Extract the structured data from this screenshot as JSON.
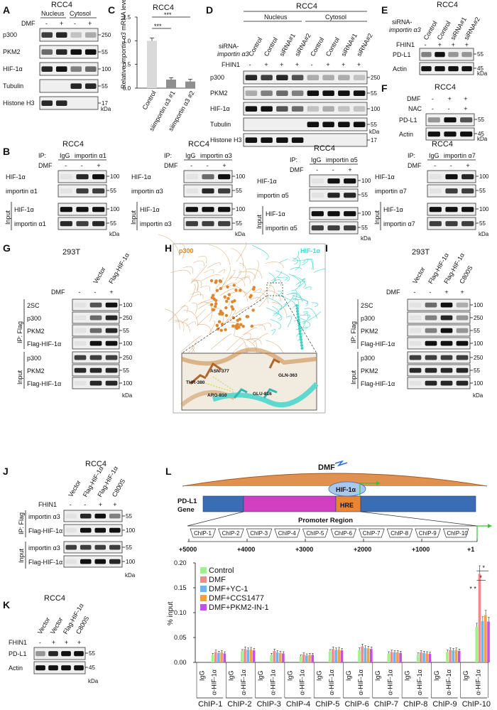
{
  "figure": {
    "panels": {
      "A": {
        "letter": "A",
        "cell": "RCC4",
        "cols": [
          "Nucleus",
          "Cytosol"
        ],
        "treat": "DMF",
        "signs": [
          "-",
          "+",
          "-",
          "+"
        ],
        "rows": [
          "p300",
          "PKM2",
          "HIF-1α",
          "Tubulin",
          "Histone H3"
        ],
        "mw": [
          "250",
          "55",
          "100",
          "55",
          "17"
        ],
        "kda": "kDa"
      },
      "B": {
        "letter": "B",
        "cell": "RCC4",
        "ip": "IP:",
        "igg": "IgG",
        "treat": "DMF",
        "input": "Input",
        "kda": "kDa",
        "subs": [
          {
            "imp": "importin α1",
            "hif": "HIF-1α",
            "mw1": "100",
            "mw2": "55"
          },
          {
            "imp": "importin α3",
            "hif": "HIF-1α",
            "mw1": "100",
            "mw2": "55"
          },
          {
            "imp": "importin α5",
            "hif": "HIF-1α",
            "mw1": "100",
            "mw2": "55"
          },
          {
            "imp": "importin α7",
            "hif": "HIF-1α",
            "mw1": "100",
            "mw2": "55"
          }
        ],
        "signs": [
          "-",
          "-",
          "+"
        ]
      },
      "C": {
        "letter": "C",
        "cell": "RCC4",
        "ylabel_a": "Relative ",
        "ylabel_b": "importin α3",
        "ylabel_c": " mRNA level",
        "cats": [
          "Control",
          "siimportin α3 #1",
          "siimportin α3 #2"
        ],
        "sig": "***",
        "yticks": [
          "0.0",
          "0.5",
          "1.0",
          "1.5"
        ]
      },
      "D": {
        "letter": "D",
        "cell": "RCC4",
        "cols": [
          "Nucleus",
          "Cytosol"
        ],
        "sirna_a": "siRNA-",
        "sirna_b": "importin α3",
        "lanes": [
          "Control",
          "Control",
          "siRNA#1",
          "siRNA#2",
          "Control",
          "Control",
          "siRNA#1",
          "siRNA#2"
        ],
        "fhin": "FHIN1",
        "signs": [
          "-",
          "+",
          "+",
          "+",
          "-",
          "+",
          "+",
          "+"
        ],
        "rows": [
          "p300",
          "PKM2",
          "HIF-1α",
          "Tubulin",
          "Histone H3"
        ],
        "mw": [
          "250",
          "55",
          "100",
          "55",
          "17"
        ],
        "kda": "kDa"
      },
      "E": {
        "letter": "E",
        "cell": "RCC4",
        "sirna_a": "siRNA-",
        "sirna_b": "importin α3",
        "lanes": [
          "Control",
          "Control",
          "siRNA#1",
          "siRNA#2"
        ],
        "fhin": "FHIN1",
        "signs": [
          "-",
          "+",
          "+",
          "+"
        ],
        "rows": [
          "PD-L1",
          "Actin"
        ],
        "mw": [
          "55",
          "45"
        ],
        "kda": "kDa"
      },
      "F": {
        "letter": "F",
        "cell": "RCC4",
        "t1": "DMF",
        "t2": "NAC",
        "s1": [
          "-",
          "+",
          "+"
        ],
        "s2": [
          "-",
          "-",
          "+"
        ],
        "rows": [
          "PD-L1",
          "Actin"
        ],
        "mw": [
          "55",
          "45"
        ],
        "kda": "kDa"
      },
      "G": {
        "letter": "G",
        "cell": "293T",
        "lanes": [
          "Vector",
          "Flag-HIF-1α"
        ],
        "treat": "DMF",
        "signs": [
          "-",
          "-",
          "+"
        ],
        "ip": "IP: Flag",
        "input": "Input",
        "rows_ip": [
          "2SC",
          "p300",
          "PKM2",
          "Flag-HIF-1α"
        ],
        "mw_ip": [
          "100",
          "250",
          "55",
          "100"
        ],
        "rows_in": [
          "p300",
          "PKM2",
          "Flag-HIF-1α"
        ],
        "mw_in": [
          "250",
          "55",
          "100"
        ],
        "kda": "kDa"
      },
      "H": {
        "letter": "H",
        "p300": "p300",
        "hif": "HIF-1α",
        "residues": [
          "ASN-377",
          "GLN-363",
          "THR-380",
          "ARG-810",
          "GLU-816"
        ]
      },
      "I": {
        "letter": "I",
        "cell": "293T",
        "lanes": [
          "Vector",
          "Flag-HIF-1α",
          "Flag-HIF-1α",
          "C800S"
        ],
        "treat": "DMF",
        "signs": [
          "-",
          "-",
          "+",
          "+"
        ],
        "ip": "IP: Flag",
        "input": "Input",
        "rows_ip": [
          "2SC",
          "p300",
          "PKM2",
          "Flag-HIF-1α"
        ],
        "mw_ip": [
          "100",
          "250",
          "55",
          "100"
        ],
        "rows_in": [
          "p300",
          "PKM2",
          "Flag-HIF-1α"
        ],
        "mw_in": [
          "250",
          "55",
          "100"
        ],
        "kda": "kDa"
      },
      "J": {
        "letter": "J",
        "cell": "RCC4",
        "lanes": [
          "Vector",
          "Flag-HIF-1α",
          "Flag-HIF-1α",
          "C800S"
        ],
        "treat": "FHIN1",
        "signs": [
          "-",
          "-",
          "+",
          "+"
        ],
        "ip": "IP: Flag",
        "input": "Input",
        "rows_ip": [
          "importin α3",
          "Flag-HIF-1α"
        ],
        "mw_ip": [
          "55",
          "100"
        ],
        "rows_in": [
          "importin α3",
          "Flag-HIF-1α"
        ],
        "mw_in": [
          "55",
          "100"
        ],
        "kda": "kDa"
      },
      "K": {
        "letter": "K",
        "cell": "RCC4",
        "lanes": [
          "Vector",
          "Vector",
          "Flag-HIF-1α",
          "C800S"
        ],
        "treat": "FHIN1",
        "signs": [
          "-",
          "+",
          "+",
          "+"
        ],
        "rows": [
          "PD-L1",
          "Actin"
        ],
        "mw": [
          "55",
          "45"
        ],
        "kda": "kDa"
      },
      "L": {
        "letter": "L",
        "dmf": "DMF",
        "gene_a": "PD-L1",
        "gene_b": "Gene",
        "hif": "HIF-1α",
        "hre": "HRE",
        "promoter": "Promoter Region",
        "chips": [
          "ChIP-1",
          "ChIP-2",
          "ChIP-3",
          "ChIP-4",
          "ChIP-5",
          "ChIP-6",
          "ChIP-7",
          "ChIP-8",
          "ChIP-9",
          "ChIP-10"
        ],
        "positions": [
          "+5000",
          "+4000",
          "+3000",
          "+2000",
          "+1000",
          "+1"
        ],
        "igg": "IgG",
        "ahif": "α-HIF-1α",
        "star": "*",
        "dstar": "* *"
      }
    }
  },
  "chart_data": [
    {
      "type": "bar",
      "title": "RCC4",
      "ylabel": "Relative importin α3 mRNA level",
      "categories": [
        "Control",
        "siimportin α3 #1",
        "siimportin α3 #2"
      ],
      "values": [
        1.0,
        0.18,
        0.14
      ],
      "errors": [
        0.06,
        0.04,
        0.05
      ],
      "ylim": [
        0,
        1.5
      ],
      "yticks": [
        0,
        0.5,
        1.0,
        1.5
      ],
      "annotations": [
        "***",
        "***"
      ]
    },
    {
      "type": "bar",
      "ylabel": "% input",
      "ylim": [
        0,
        0.2
      ],
      "yticks": [
        "0.00",
        "0.05",
        "0.10",
        "0.15",
        "0.20"
      ],
      "categories": [
        "ChIP-1",
        "ChIP-2",
        "ChIP-3",
        "ChIP-4",
        "ChIP-5",
        "ChIP-6",
        "ChIP-7",
        "ChIP-8",
        "ChIP-9",
        "ChIP-10"
      ],
      "subcategories": [
        "IgG",
        "α-HIF-1α"
      ],
      "legend_position": "top-left",
      "series": [
        {
          "name": "Control",
          "color": "#9ef28a",
          "values": [
            0.015,
            0.022,
            0.015,
            0.012,
            0.022,
            0.025,
            0.018,
            0.016,
            0.021,
            0.071
          ]
        },
        {
          "name": "DMF",
          "color": "#f28a8a",
          "values": [
            0.021,
            0.027,
            0.023,
            0.016,
            0.027,
            0.032,
            0.021,
            0.02,
            0.025,
            0.178
          ]
        },
        {
          "name": "DMF+YC-1",
          "color": "#6fb3ef",
          "values": [
            0.019,
            0.025,
            0.02,
            0.014,
            0.025,
            0.029,
            0.02,
            0.019,
            0.024,
            0.083
          ]
        },
        {
          "name": "DMF+CCS1477",
          "color": "#f2a040",
          "values": [
            0.02,
            0.026,
            0.019,
            0.015,
            0.026,
            0.028,
            0.02,
            0.018,
            0.025,
            0.095
          ]
        },
        {
          "name": "DMF+PKM2-IN-1",
          "color": "#c450e8",
          "values": [
            0.018,
            0.024,
            0.018,
            0.015,
            0.024,
            0.027,
            0.019,
            0.017,
            0.023,
            0.082
          ]
        }
      ],
      "annotations": [
        "* *",
        "*",
        "*"
      ]
    }
  ]
}
